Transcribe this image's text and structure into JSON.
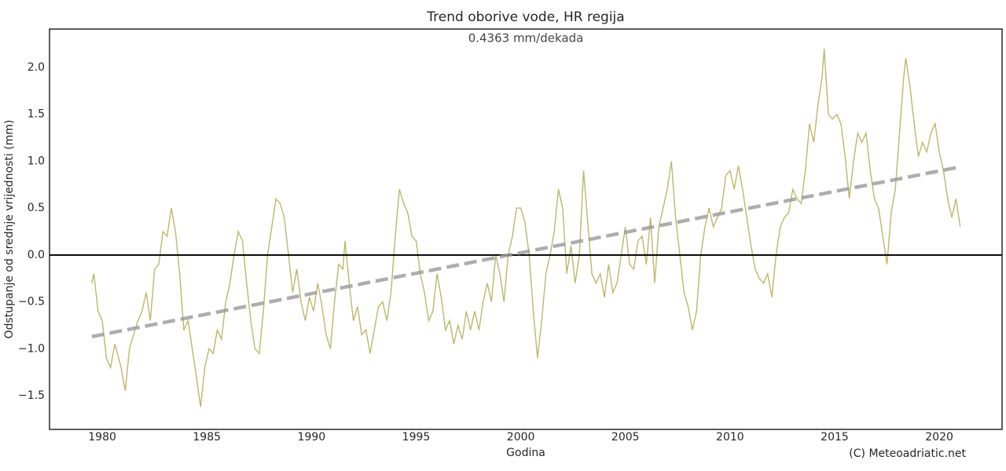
{
  "chart_data": {
    "type": "line",
    "title": "Trend oborive vode, HR regija",
    "subtitle": "0.4363 mm/dekada",
    "x_label": "Godina",
    "y_label": "Odstupanje od srednje vrijednosti (mm)",
    "credit": "(C) Meteoadriatic.net",
    "xlim": [
      1977.48,
      2023.0
    ],
    "ylim": [
      -1.86,
      2.41
    ],
    "xticks": [
      1980,
      1985,
      1990,
      1995,
      2000,
      2005,
      2010,
      2015,
      2020
    ],
    "yticks": [
      {
        "value": -1.5,
        "label": "−1.5"
      },
      {
        "value": -1.0,
        "label": "−1.0"
      },
      {
        "value": -0.5,
        "label": "−0.5"
      },
      {
        "value": 0.0,
        "label": "0.0"
      },
      0.5,
      {
        "value": 1.0,
        "label": "1.0"
      },
      1.5,
      {
        "value": 2.0,
        "label": "2.0"
      }
    ],
    "zero_line": 0,
    "trend": {
      "color": "#999999",
      "x": [
        1979.5,
        2021.0
      ],
      "values": [
        -0.87,
        0.94
      ]
    },
    "series": [
      {
        "color": "#bdb76b",
        "x": [
          1979.5,
          1979.6,
          1979.8,
          1980.0,
          1980.2,
          1980.4,
          1980.6,
          1980.9,
          1981.1,
          1981.3,
          1981.5,
          1981.7,
          1981.9,
          1982.1,
          1982.3,
          1982.5,
          1982.7,
          1982.9,
          1983.1,
          1983.3,
          1983.5,
          1983.7,
          1983.9,
          1984.1,
          1984.3,
          1984.5,
          1984.7,
          1984.9,
          1985.1,
          1985.3,
          1985.5,
          1985.7,
          1985.9,
          1986.1,
          1986.3,
          1986.5,
          1986.7,
          1986.9,
          1987.1,
          1987.3,
          1987.5,
          1987.7,
          1987.9,
          1988.1,
          1988.3,
          1988.5,
          1988.7,
          1988.9,
          1989.1,
          1989.3,
          1989.5,
          1989.7,
          1989.9,
          1990.1,
          1990.3,
          1990.5,
          1990.7,
          1990.9,
          1991.1,
          1991.3,
          1991.5,
          1991.6,
          1991.8,
          1992.0,
          1992.2,
          1992.4,
          1992.6,
          1992.8,
          1993.0,
          1993.2,
          1993.4,
          1993.6,
          1993.8,
          1994.0,
          1994.2,
          1994.4,
          1994.6,
          1994.8,
          1995.0,
          1995.2,
          1995.4,
          1995.6,
          1995.8,
          1996.0,
          1996.2,
          1996.4,
          1996.6,
          1996.8,
          1997.0,
          1997.2,
          1997.4,
          1997.6,
          1997.8,
          1998.0,
          1998.2,
          1998.4,
          1998.6,
          1998.8,
          1999.0,
          1999.2,
          1999.4,
          1999.6,
          1999.8,
          2000.0,
          2000.2,
          2000.4,
          2000.6,
          2000.8,
          2001.0,
          2001.2,
          2001.4,
          2001.6,
          2001.8,
          2002.0,
          2002.2,
          2002.4,
          2002.6,
          2002.8,
          2003.0,
          2003.2,
          2003.4,
          2003.6,
          2003.8,
          2004.0,
          2004.2,
          2004.4,
          2004.6,
          2004.8,
          2005.0,
          2005.2,
          2005.4,
          2005.6,
          2005.8,
          2006.0,
          2006.2,
          2006.4,
          2006.6,
          2006.8,
          2007.0,
          2007.2,
          2007.4,
          2007.6,
          2007.8,
          2008.0,
          2008.2,
          2008.4,
          2008.6,
          2008.8,
          2009.0,
          2009.2,
          2009.4,
          2009.6,
          2009.8,
          2010.0,
          2010.2,
          2010.4,
          2010.6,
          2010.8,
          2011.0,
          2011.2,
          2011.4,
          2011.6,
          2011.8,
          2012.0,
          2012.2,
          2012.4,
          2012.6,
          2012.8,
          2013.0,
          2013.2,
          2013.4,
          2013.6,
          2013.8,
          2014.0,
          2014.2,
          2014.4,
          2014.5,
          2014.7,
          2014.9,
          2015.1,
          2015.3,
          2015.5,
          2015.7,
          2015.9,
          2016.1,
          2016.3,
          2016.5,
          2016.7,
          2016.9,
          2017.1,
          2017.3,
          2017.5,
          2017.7,
          2017.9,
          2018.1,
          2018.3,
          2018.4,
          2018.6,
          2018.8,
          2019.0,
          2019.2,
          2019.4,
          2019.6,
          2019.8,
          2020.0,
          2020.2,
          2020.4,
          2020.6,
          2020.8,
          2021.0
        ],
        "values": [
          -0.3,
          -0.2,
          -0.6,
          -0.7,
          -1.1,
          -1.2,
          -0.95,
          -1.2,
          -1.45,
          -1.0,
          -0.85,
          -0.7,
          -0.6,
          -0.4,
          -0.7,
          -0.15,
          -0.1,
          0.25,
          0.2,
          0.5,
          0.25,
          -0.2,
          -0.8,
          -0.7,
          -1.0,
          -1.3,
          -1.62,
          -1.2,
          -1.0,
          -1.05,
          -0.8,
          -0.9,
          -0.5,
          -0.3,
          0.0,
          0.25,
          0.15,
          -0.3,
          -0.7,
          -1.0,
          -1.05,
          -0.6,
          0.0,
          0.3,
          0.6,
          0.55,
          0.4,
          0.0,
          -0.4,
          -0.15,
          -0.5,
          -0.7,
          -0.45,
          -0.6,
          -0.3,
          -0.55,
          -0.85,
          -1.0,
          -0.5,
          -0.1,
          -0.15,
          0.15,
          -0.3,
          -0.7,
          -0.55,
          -0.85,
          -0.8,
          -1.05,
          -0.8,
          -0.55,
          -0.5,
          -0.7,
          -0.4,
          0.2,
          0.7,
          0.55,
          0.45,
          0.2,
          0.15,
          -0.2,
          -0.4,
          -0.7,
          -0.6,
          -0.2,
          -0.45,
          -0.8,
          -0.7,
          -0.95,
          -0.75,
          -0.9,
          -0.6,
          -0.8,
          -0.6,
          -0.8,
          -0.5,
          -0.3,
          -0.5,
          0.0,
          -0.2,
          -0.5,
          0.0,
          0.2,
          0.5,
          0.5,
          0.35,
          0.0,
          -0.6,
          -1.1,
          -0.7,
          -0.2,
          0.0,
          0.25,
          0.7,
          0.5,
          -0.2,
          0.1,
          -0.3,
          0.0,
          0.9,
          0.35,
          -0.2,
          -0.3,
          -0.2,
          -0.45,
          -0.1,
          -0.4,
          -0.3,
          0.0,
          0.3,
          -0.1,
          -0.15,
          0.15,
          0.2,
          -0.1,
          0.4,
          -0.3,
          0.3,
          0.5,
          0.7,
          1.0,
          0.4,
          0.0,
          -0.4,
          -0.55,
          -0.8,
          -0.6,
          0.0,
          0.3,
          0.5,
          0.3,
          0.4,
          0.5,
          0.85,
          0.9,
          0.7,
          0.95,
          0.7,
          0.4,
          0.1,
          -0.15,
          -0.25,
          -0.3,
          -0.2,
          -0.45,
          0.0,
          0.3,
          0.4,
          0.45,
          0.7,
          0.6,
          0.55,
          0.9,
          1.4,
          1.2,
          1.6,
          1.9,
          2.2,
          1.5,
          1.45,
          1.5,
          1.4,
          1.05,
          0.6,
          1.0,
          1.3,
          1.2,
          1.3,
          0.9,
          0.6,
          0.5,
          0.2,
          -0.1,
          0.45,
          0.7,
          1.3,
          1.9,
          2.1,
          1.8,
          1.4,
          1.05,
          1.2,
          1.1,
          1.3,
          1.4,
          1.1,
          0.9,
          0.6,
          0.4,
          0.6,
          0.3
        ]
      }
    ]
  }
}
